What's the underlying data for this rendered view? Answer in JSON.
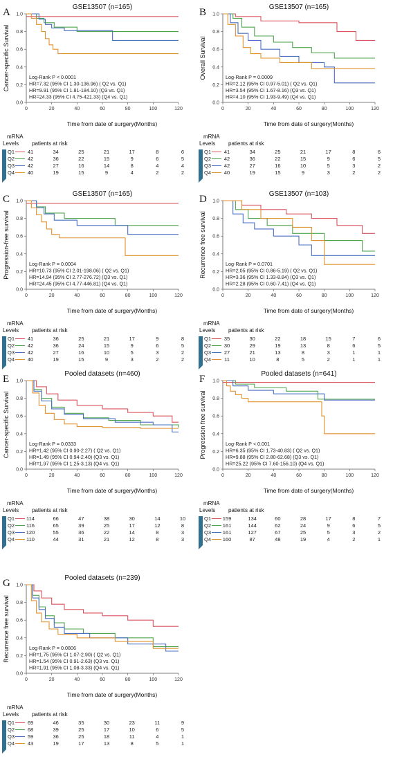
{
  "colors": {
    "Q1": "#d9545c",
    "Q2": "#4da34d",
    "Q3": "#4a6fc0",
    "Q4": "#e0922e",
    "axis": "#555555",
    "bracket": "#2f6f8f"
  },
  "quartile_labels": [
    "Q1",
    "Q2",
    "Q3",
    "Q4"
  ],
  "mrna_label_1": "mRNA",
  "mrna_label_2": "Levels",
  "risk_header": "patients at risk",
  "xlabel": "Time from date of surgery(Months)",
  "chart_data": [
    {
      "panel": "A",
      "type": "line",
      "step": true,
      "title": "GSE13507 (n=165)",
      "ylabel": "Cancer-specific Survival",
      "xlim": [
        0,
        120
      ],
      "ylim": [
        0,
        1.0
      ],
      "xticks": [
        0,
        20,
        40,
        60,
        80,
        100,
        120
      ],
      "yticks": [
        0.0,
        0.2,
        0.4,
        0.6,
        0.8,
        1.0
      ],
      "stat_lines": [
        "Log-Rank P < 0.0001",
        "HR=7.32 (95% CI 1.30-136.96) ( Q2 vs. Q1)",
        "HR=9.91 (95% CI 1.81-184.10) (Q3 vs. Q1)",
        "HR=24.33 (95% CI 4.75-421.33) (Q4 vs. Q1)"
      ],
      "series": [
        {
          "name": "Q1",
          "x": [
            0,
            120
          ],
          "y": [
            0.97,
            0.97
          ]
        },
        {
          "name": "Q2",
          "x": [
            0,
            8,
            14,
            22,
            40,
            120
          ],
          "y": [
            1.0,
            0.95,
            0.9,
            0.85,
            0.8,
            0.8
          ]
        },
        {
          "name": "Q3",
          "x": [
            0,
            10,
            15,
            20,
            30,
            68,
            120
          ],
          "y": [
            1.0,
            0.94,
            0.88,
            0.84,
            0.81,
            0.7,
            0.7
          ]
        },
        {
          "name": "Q4",
          "x": [
            0,
            4,
            8,
            12,
            15,
            18,
            21,
            25,
            120
          ],
          "y": [
            1.0,
            0.95,
            0.88,
            0.8,
            0.72,
            0.65,
            0.6,
            0.55,
            0.55
          ]
        }
      ],
      "risk_table": {
        "Q1": [
          41,
          34,
          25,
          21,
          17,
          8,
          6
        ],
        "Q2": [
          42,
          36,
          22,
          15,
          9,
          6,
          5
        ],
        "Q3": [
          42,
          27,
          16,
          14,
          8,
          4,
          4
        ],
        "Q4": [
          40,
          19,
          15,
          9,
          4,
          2,
          2
        ]
      }
    },
    {
      "panel": "B",
      "type": "line",
      "step": true,
      "title": "GSE13507 (n=165)",
      "ylabel": "Overall Survival",
      "xlim": [
        0,
        120
      ],
      "ylim": [
        0,
        1.0
      ],
      "xticks": [
        0,
        20,
        40,
        60,
        80,
        100,
        120
      ],
      "yticks": [
        0.0,
        0.2,
        0.4,
        0.6,
        0.8,
        1.0
      ],
      "stat_lines": [
        "Log-Rank P = 0.0009",
        "HR=2.12 (95% CI 0.97-5.01) ( Q2 vs. Q1)",
        "HR=3.54 (95% CI 1.67-8.16) (Q3 vs. Q1)",
        "HR=4.10 (95% CI 1.93-9.49) (Q4 vs. Q1)"
      ],
      "series": [
        {
          "name": "Q1",
          "x": [
            0,
            10,
            30,
            60,
            90,
            105,
            120
          ],
          "y": [
            1.0,
            0.97,
            0.92,
            0.9,
            0.8,
            0.7,
            0.7
          ]
        },
        {
          "name": "Q2",
          "x": [
            0,
            8,
            15,
            25,
            40,
            55,
            70,
            88,
            120
          ],
          "y": [
            1.0,
            0.95,
            0.85,
            0.75,
            0.68,
            0.62,
            0.56,
            0.5,
            0.5
          ]
        },
        {
          "name": "Q3",
          "x": [
            0,
            6,
            12,
            20,
            30,
            45,
            60,
            80,
            88,
            120
          ],
          "y": [
            1.0,
            0.9,
            0.78,
            0.7,
            0.6,
            0.52,
            0.45,
            0.4,
            0.22,
            0.22
          ]
        },
        {
          "name": "Q4",
          "x": [
            0,
            4,
            10,
            16,
            22,
            30,
            45,
            70,
            120
          ],
          "y": [
            1.0,
            0.88,
            0.75,
            0.62,
            0.55,
            0.5,
            0.45,
            0.38,
            0.38
          ]
        }
      ],
      "risk_table": {
        "Q1": [
          41,
          34,
          25,
          21,
          17,
          8,
          6
        ],
        "Q2": [
          42,
          36,
          22,
          15,
          9,
          6,
          5
        ],
        "Q3": [
          42,
          27,
          16,
          10,
          5,
          3,
          2
        ],
        "Q4": [
          40,
          19,
          15,
          9,
          3,
          2,
          2
        ]
      }
    },
    {
      "panel": "C",
      "type": "line",
      "step": true,
      "title": "GSE13507 (n=165)",
      "ylabel": "Progression-free survival",
      "xlim": [
        0,
        120
      ],
      "ylim": [
        0,
        1.0
      ],
      "xticks": [
        0,
        20,
        40,
        60,
        80,
        100,
        120
      ],
      "yticks": [
        0.0,
        0.2,
        0.4,
        0.6,
        0.8,
        1.0
      ],
      "stat_lines": [
        "Log-Rank P = 0.0004",
        "HR=10.73 (95% CI 2.01-198.06) ( Q2 vs. Q1)",
        "HR=14.94 (95% CI 2.77-276.72) (Q3 vs. Q1)",
        "HR=24.45 (95% CI 4.77-446.81) (Q4 vs. Q1)"
      ],
      "series": [
        {
          "name": "Q1",
          "x": [
            0,
            120
          ],
          "y": [
            0.97,
            0.97
          ]
        },
        {
          "name": "Q2",
          "x": [
            0,
            8,
            15,
            30,
            70,
            120
          ],
          "y": [
            1.0,
            0.93,
            0.86,
            0.8,
            0.72,
            0.72
          ]
        },
        {
          "name": "Q3",
          "x": [
            0,
            8,
            14,
            22,
            40,
            80,
            120
          ],
          "y": [
            1.0,
            0.92,
            0.85,
            0.78,
            0.72,
            0.62,
            0.62
          ]
        },
        {
          "name": "Q4",
          "x": [
            0,
            4,
            8,
            12,
            16,
            20,
            26,
            78,
            120
          ],
          "y": [
            1.0,
            0.92,
            0.84,
            0.76,
            0.68,
            0.62,
            0.58,
            0.38,
            0.38
          ]
        }
      ],
      "risk_table": {
        "Q1": [
          41,
          36,
          25,
          21,
          17,
          9,
          8
        ],
        "Q2": [
          42,
          36,
          24,
          15,
          9,
          6,
          5
        ],
        "Q3": [
          42,
          27,
          16,
          10,
          5,
          3,
          2
        ],
        "Q4": [
          40,
          19,
          15,
          9,
          3,
          2,
          2
        ]
      }
    },
    {
      "panel": "D",
      "type": "line",
      "step": true,
      "title": "GSE13507 (n=103)",
      "ylabel": "Recurrence free survival",
      "xlim": [
        0,
        120
      ],
      "ylim": [
        0,
        1.0
      ],
      "xticks": [
        0,
        20,
        40,
        60,
        80,
        100,
        120
      ],
      "yticks": [
        0.0,
        0.2,
        0.4,
        0.6,
        0.8,
        1.0
      ],
      "stat_lines": [
        "Log-Rank P = 0.0701",
        "HR=2.05 (95% CI 0.86-5.19) ( Q2 vs. Q1)",
        "HR=3.36 (95% CI 1.33-8.84) (Q3 vs. Q1)",
        "HR=2.28 (95% CI 0.60-7.41) (Q4 vs. Q1)"
      ],
      "series": [
        {
          "name": "Q1",
          "x": [
            0,
            15,
            30,
            50,
            70,
            90,
            110,
            120
          ],
          "y": [
            1.0,
            0.95,
            0.9,
            0.85,
            0.8,
            0.72,
            0.63,
            0.63
          ]
        },
        {
          "name": "Q2",
          "x": [
            0,
            10,
            20,
            35,
            55,
            80,
            110,
            120
          ],
          "y": [
            1.0,
            0.9,
            0.8,
            0.72,
            0.63,
            0.55,
            0.43,
            0.43
          ]
        },
        {
          "name": "Q3",
          "x": [
            0,
            8,
            16,
            25,
            40,
            60,
            70,
            100,
            120
          ],
          "y": [
            1.0,
            0.85,
            0.75,
            0.68,
            0.6,
            0.5,
            0.38,
            0.38,
            0.38
          ]
        },
        {
          "name": "Q4",
          "x": [
            0,
            15,
            30,
            55,
            70,
            80,
            120
          ],
          "y": [
            1.0,
            0.9,
            0.8,
            0.7,
            0.55,
            0.28,
            0.28
          ]
        }
      ],
      "risk_table": {
        "Q1": [
          35,
          30,
          22,
          18,
          15,
          7,
          6
        ],
        "Q2": [
          30,
          29,
          19,
          13,
          8,
          6,
          5
        ],
        "Q3": [
          27,
          21,
          13,
          8,
          3,
          1,
          1
        ],
        "Q4": [
          11,
          10,
          8,
          5,
          2,
          1,
          1
        ]
      }
    },
    {
      "panel": "E",
      "type": "line",
      "step": true,
      "title": "Pooled datasets (n=460)",
      "ylabel": "Cancer-specific Survival",
      "xlim": [
        0,
        120
      ],
      "ylim": [
        0,
        1.0
      ],
      "xticks": [
        0,
        20,
        40,
        60,
        80,
        100,
        120
      ],
      "yticks": [
        0.0,
        0.2,
        0.4,
        0.6,
        0.8,
        1.0
      ],
      "stat_lines": [
        "Log-Rank P = 0.0333",
        "HR=1.42 (95% CI 0.90-2.27) ( Q2 vs. Q1)",
        "HR=1.49 (95% CI 0.94-2.40) (Q3 vs. Q1)",
        "HR=1.97 (95% CI 1.25-3.13) (Q4 vs. Q1)"
      ],
      "series": [
        {
          "name": "Q1",
          "x": [
            0,
            8,
            16,
            25,
            40,
            60,
            80,
            100,
            115,
            120
          ],
          "y": [
            1.0,
            0.93,
            0.85,
            0.78,
            0.72,
            0.68,
            0.64,
            0.6,
            0.53,
            0.53
          ]
        },
        {
          "name": "Q2",
          "x": [
            0,
            6,
            12,
            20,
            30,
            45,
            65,
            90,
            120
          ],
          "y": [
            1.0,
            0.9,
            0.8,
            0.7,
            0.63,
            0.58,
            0.55,
            0.5,
            0.47
          ]
        },
        {
          "name": "Q3",
          "x": [
            0,
            6,
            12,
            20,
            30,
            45,
            70,
            100,
            115,
            120
          ],
          "y": [
            1.0,
            0.88,
            0.77,
            0.68,
            0.62,
            0.57,
            0.53,
            0.5,
            0.42,
            0.42
          ]
        },
        {
          "name": "Q4",
          "x": [
            0,
            5,
            10,
            15,
            22,
            30,
            40,
            60,
            90,
            120
          ],
          "y": [
            1.0,
            0.86,
            0.72,
            0.63,
            0.56,
            0.51,
            0.48,
            0.47,
            0.46,
            0.46
          ]
        }
      ],
      "risk_table": {
        "Q1": [
          114,
          66,
          47,
          38,
          30,
          14,
          10
        ],
        "Q2": [
          116,
          65,
          39,
          25,
          17,
          12,
          8
        ],
        "Q3": [
          120,
          55,
          36,
          22,
          14,
          8,
          3
        ],
        "Q4": [
          110,
          44,
          31,
          21,
          12,
          8,
          3
        ]
      }
    },
    {
      "panel": "F",
      "type": "line",
      "step": true,
      "title": "Pooled datasets (n=641)",
      "ylabel": "Progression free survival",
      "xlim": [
        0,
        120
      ],
      "ylim": [
        0,
        1.0
      ],
      "xticks": [
        0,
        20,
        40,
        60,
        80,
        100,
        120
      ],
      "yticks": [
        0.0,
        0.2,
        0.4,
        0.6,
        0.8,
        1.0
      ],
      "stat_lines": [
        "Log-Rank P < 0.001",
        "HR=6.35 (95% CI 1.73-40.83) ( Q2 vs. Q1)",
        "HR=9.88 (95% CI 2.80-62.68) (Q3 vs. Q1)",
        "HR=25.22 (95% CI 7.60-156.10) (Q4 vs. Q1)"
      ],
      "series": [
        {
          "name": "Q1",
          "x": [
            0,
            120
          ],
          "y": [
            0.98,
            0.98
          ]
        },
        {
          "name": "Q2",
          "x": [
            0,
            10,
            25,
            50,
            75,
            120
          ],
          "y": [
            1.0,
            0.96,
            0.92,
            0.88,
            0.79,
            0.79
          ]
        },
        {
          "name": "Q3",
          "x": [
            0,
            8,
            20,
            40,
            80,
            120
          ],
          "y": [
            1.0,
            0.94,
            0.89,
            0.85,
            0.78,
            0.78
          ]
        },
        {
          "name": "Q4",
          "x": [
            0,
            3,
            6,
            10,
            15,
            20,
            78,
            80,
            120
          ],
          "y": [
            1.0,
            0.94,
            0.88,
            0.84,
            0.8,
            0.76,
            0.6,
            0.4,
            0.4
          ]
        }
      ],
      "risk_table": {
        "Q1": [
          159,
          134,
          60,
          28,
          17,
          8,
          7
        ],
        "Q2": [
          161,
          144,
          62,
          24,
          9,
          6,
          5
        ],
        "Q3": [
          161,
          127,
          67,
          25,
          5,
          3,
          2
        ],
        "Q4": [
          160,
          87,
          48,
          19,
          4,
          2,
          1
        ]
      }
    },
    {
      "panel": "G",
      "type": "line",
      "step": true,
      "title": "Pooled datasets (n=239)",
      "ylabel": "Recurrence free survival",
      "xlim": [
        0,
        120
      ],
      "ylim": [
        0,
        1.0
      ],
      "xticks": [
        0,
        20,
        40,
        60,
        80,
        100,
        120
      ],
      "yticks": [
        0.0,
        0.2,
        0.4,
        0.6,
        0.8,
        1.0
      ],
      "stat_lines": [
        "Log-Rank P = 0.0806",
        "HR=1.75 (95% CI 1.07-2.90) ( Q2 vs. Q1)",
        "HR=1.54 (95% CI 0.91-2.63) (Q3 vs. Q1)",
        "HR=1.91 (95% CI 1.08-3.33) (Q4 vs. Q1)"
      ],
      "series": [
        {
          "name": "Q1",
          "x": [
            0,
            6,
            12,
            20,
            30,
            45,
            60,
            80,
            100,
            120
          ],
          "y": [
            1.0,
            0.93,
            0.85,
            0.78,
            0.72,
            0.68,
            0.65,
            0.6,
            0.53,
            0.53
          ]
        },
        {
          "name": "Q2",
          "x": [
            0,
            5,
            10,
            15,
            22,
            30,
            45,
            70,
            100,
            120
          ],
          "y": [
            1.0,
            0.88,
            0.75,
            0.65,
            0.57,
            0.5,
            0.45,
            0.4,
            0.3,
            0.3
          ]
        },
        {
          "name": "Q3",
          "x": [
            0,
            5,
            10,
            15,
            22,
            30,
            50,
            80,
            110,
            120
          ],
          "y": [
            1.0,
            0.85,
            0.72,
            0.62,
            0.52,
            0.45,
            0.4,
            0.33,
            0.25,
            0.25
          ]
        },
        {
          "name": "Q4",
          "x": [
            0,
            4,
            8,
            12,
            18,
            25,
            40,
            70,
            100,
            120
          ],
          "y": [
            1.0,
            0.82,
            0.68,
            0.58,
            0.5,
            0.44,
            0.4,
            0.36,
            0.28,
            0.28
          ]
        }
      ],
      "risk_table": {
        "Q1": [
          69,
          46,
          35,
          30,
          23,
          11,
          9
        ],
        "Q2": [
          68,
          39,
          25,
          17,
          10,
          6,
          5
        ],
        "Q3": [
          59,
          36,
          25,
          18,
          11,
          4,
          1
        ],
        "Q4": [
          43,
          19,
          17,
          13,
          8,
          5,
          1
        ]
      }
    }
  ]
}
